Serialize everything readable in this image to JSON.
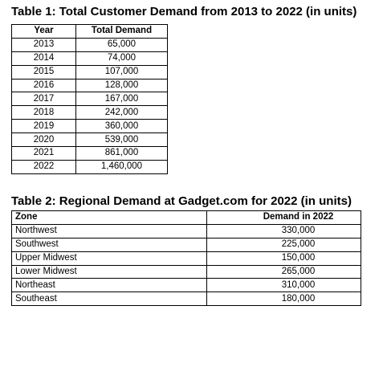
{
  "table1": {
    "title": "Table 1: Total Customer Demand from 2013 to 2022 (in units)",
    "headers": [
      "Year",
      "Total Demand"
    ],
    "rows": [
      [
        "2013",
        "65,000"
      ],
      [
        "2014",
        "74,000"
      ],
      [
        "2015",
        "107,000"
      ],
      [
        "2016",
        "128,000"
      ],
      [
        "2017",
        "167,000"
      ],
      [
        "2018",
        "242,000"
      ],
      [
        "2019",
        "360,000"
      ],
      [
        "2020",
        "539,000"
      ],
      [
        "2021",
        "861,000"
      ],
      [
        "2022",
        "1,460,000"
      ]
    ]
  },
  "table2": {
    "title": "Table 2: Regional Demand at Gadget.com for 2022 (in units)",
    "headers": [
      "Zone",
      "Demand in 2022"
    ],
    "rows": [
      [
        "Northwest",
        "330,000"
      ],
      [
        "Southwest",
        "225,000"
      ],
      [
        "Upper Midwest",
        "150,000"
      ],
      [
        "Lower Midwest",
        "265,000"
      ],
      [
        "Northeast",
        "310,000"
      ],
      [
        "Southeast",
        "180,000"
      ]
    ]
  }
}
